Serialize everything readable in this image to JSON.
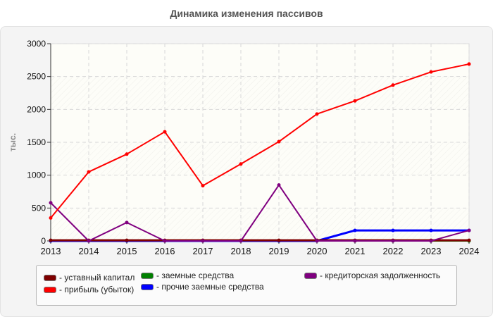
{
  "title": "Динамика изменения пассивов",
  "chart_data": {
    "type": "line",
    "title": "Динамика изменения пассивов",
    "xlabel": "",
    "ylabel": "тыс.",
    "ylim": [
      0,
      3000
    ],
    "yticks": [
      0,
      500,
      1000,
      1500,
      2000,
      2500,
      3000
    ],
    "grid": true,
    "legend_position": "bottom",
    "x": [
      "2013",
      "2014",
      "2015",
      "2016",
      "2017",
      "2018",
      "2019",
      "2020",
      "2021",
      "2022",
      "2023",
      "2024"
    ],
    "series": [
      {
        "name": "уставный капитал",
        "color": "#7f0000",
        "values": [
          10,
          10,
          10,
          10,
          10,
          10,
          10,
          10,
          10,
          10,
          10,
          10
        ]
      },
      {
        "name": "прибыль (убыток)",
        "color": "#ff0000",
        "values": [
          350,
          1050,
          1320,
          1660,
          840,
          1170,
          1510,
          1930,
          2130,
          2370,
          2570,
          2690
        ]
      },
      {
        "name": "заемные средства",
        "color": "#008000",
        "values": [
          0,
          0,
          0,
          0,
          0,
          0,
          0,
          0,
          0,
          0,
          0,
          0
        ]
      },
      {
        "name": "прочие заемные средства",
        "color": "#0000ff",
        "values": [
          0,
          0,
          0,
          0,
          0,
          0,
          0,
          0,
          160,
          160,
          160,
          160
        ]
      },
      {
        "name": "кредиторская задолженность",
        "color": "#800080",
        "values": [
          580,
          0,
          280,
          0,
          0,
          0,
          850,
          0,
          0,
          0,
          0,
          160
        ]
      }
    ]
  },
  "legend": [
    {
      "label": "- уставный капитал",
      "color": "#7f0000"
    },
    {
      "label": "- прибыль (убыток)",
      "color": "#ff0000"
    },
    {
      "label": "- заемные средства",
      "color": "#008000"
    },
    {
      "label": "- прочие заемные средства",
      "color": "#0000ff"
    },
    {
      "label": "- кредиторская задолженность",
      "color": "#800080"
    }
  ]
}
